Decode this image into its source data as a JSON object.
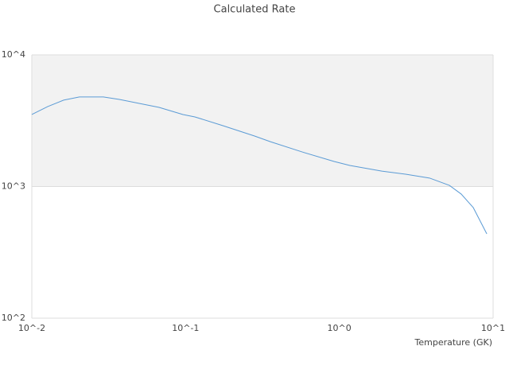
{
  "chart_data": {
    "type": "line",
    "title": "Calculated Rate",
    "x_label": "Temperature (GK)",
    "x_scale": "log",
    "y_scale": "log",
    "bands": true,
    "xlim": [
      0.01,
      10
    ],
    "ylim": [
      100,
      10000
    ],
    "xticks": [
      {
        "value": 0.01,
        "label": "10^-2"
      },
      {
        "value": 0.1,
        "label": "10^-1"
      },
      {
        "value": 1,
        "label": "10^0"
      },
      {
        "value": 10,
        "label": "10^1"
      }
    ],
    "yticks": [
      {
        "value": 100,
        "label": "10^2"
      },
      {
        "value": 1000,
        "label": "10^3"
      },
      {
        "value": 10000,
        "label": "10^4"
      }
    ],
    "x": [
      0.01,
      0.0127,
      0.0161,
      0.0204,
      0.0292,
      0.0371,
      0.053,
      0.0673,
      0.0962,
      0.115,
      0.175,
      0.281,
      0.356,
      0.574,
      0.925,
      1.17,
      1.89,
      2.7,
      3.86,
      5.2,
      6.2,
      7.43,
      9.1
    ],
    "series": [
      {
        "color": "#5b9bd5",
        "values": [
          3524,
          4050,
          4530,
          4790,
          4790,
          4590,
          4220,
          3990,
          3524,
          3380,
          2900,
          2420,
          2190,
          1830,
          1550,
          1445,
          1310,
          1240,
          1160,
          1020,
          877,
          692,
          437
        ]
      }
    ]
  }
}
